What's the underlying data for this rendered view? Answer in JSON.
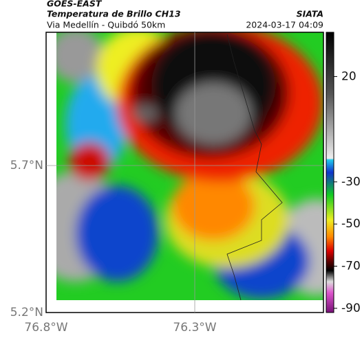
{
  "header": {
    "title": "GOES-EAST",
    "subtitle": "Temperatura de Brillo CH13",
    "region": "Via Medellín - Quibdó 50km",
    "source": "SIATA",
    "datetime": "2024-03-17 04:09"
  },
  "map": {
    "lat_labels": [
      "5.7°N",
      "5.2°N"
    ],
    "lon_labels": [
      "76.8°W",
      "76.3°W"
    ]
  },
  "colorbar": {
    "lim": [
      -92,
      41
    ],
    "ticks": [
      20,
      -30,
      -50,
      -70,
      -90
    ]
  }
}
